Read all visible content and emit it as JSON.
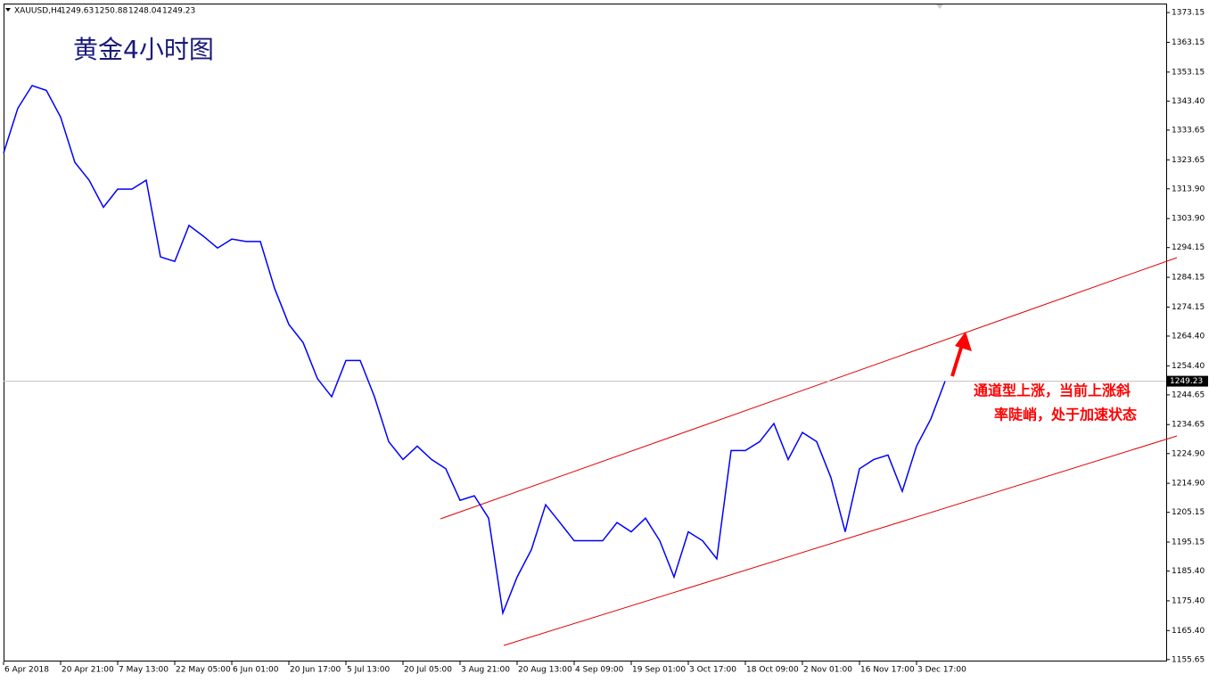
{
  "chart_data": {
    "type": "line",
    "symbol": "XAUUSD,H4",
    "ohlc": [
      1249.63,
      1250.88,
      1248.04,
      1249.23
    ],
    "title": "黄金4小时图",
    "annotation": [
      "通道型上涨，当前上涨斜",
      "率陡峭，处于加速状态"
    ],
    "current_price": 1249.23,
    "categories": [
      "6 Apr 2018",
      null,
      null,
      null,
      "20 Apr 21:00",
      null,
      null,
      null,
      "7 May 13:00",
      null,
      null,
      null,
      "22 May 05:00",
      null,
      null,
      null,
      "6 Jun 01:00",
      null,
      null,
      null,
      "20 Jun 17:00",
      null,
      null,
      null,
      "5 Jul 13:00",
      null,
      null,
      null,
      "20 Jul 05:00",
      null,
      null,
      null,
      "3 Aug 21:00",
      null,
      null,
      null,
      "20 Aug 13:00",
      null,
      null,
      null,
      "4 Sep 09:00",
      null,
      null,
      null,
      "19 Sep 01:00",
      null,
      null,
      null,
      "3 Oct 17:00",
      null,
      null,
      null,
      "18 Oct 09:00",
      null,
      null,
      null,
      "2 Nov 01:00",
      null,
      null,
      null,
      "16 Nov 17:00",
      null,
      null,
      null,
      "3 Dec 17:00",
      null,
      null,
      null,
      null,
      null,
      null,
      null,
      null,
      null,
      null,
      null,
      null,
      null,
      null,
      null,
      null,
      null
    ],
    "series": [
      {
        "name": "XAUUSD,H4",
        "color": "#0000ff",
        "values": [
          1325.9,
          1341,
          1348.6,
          1347,
          1338,
          1322.8,
          1316.8,
          1307.7,
          1313.8,
          1313.8,
          1316.8,
          1291,
          1289.5,
          1301.6,
          1298,
          1294,
          1297,
          1296.2,
          1296.2,
          1280.4,
          1268.3,
          1262.2,
          1250.1,
          1244,
          1256.2,
          1256.2,
          1244,
          1228.9,
          1222.9,
          1227.4,
          1222.9,
          1219.8,
          1209.2,
          1210.7,
          1203.2,
          1171.3,
          1183.4,
          1192.6,
          1207.7,
          1201.7,
          1195.6,
          1195.6,
          1195.6,
          1201.7,
          1198.6,
          1203.2,
          1195.6,
          1183.4,
          1198.6,
          1195.6,
          1189.5,
          1225.9,
          1225.9,
          1228.9,
          1235,
          1222.9,
          1232,
          1228.9,
          1216.8,
          1198.6,
          1219.8,
          1222.9,
          1224.4,
          1212.2,
          1227.4,
          1236.5,
          1249.23,
          null,
          null,
          null,
          null,
          null,
          null,
          null,
          null,
          null,
          null,
          null,
          null,
          null,
          null,
          null
        ]
      }
    ],
    "ylim": [
      1155.0,
      1375.88
    ],
    "yticks": [
      {
        "value": 1373.15,
        "label": "1373.15"
      },
      {
        "value": 1363.15,
        "label": "1363.15"
      },
      {
        "value": 1353.15,
        "label": "1353.15"
      },
      {
        "value": 1343.4,
        "label": "1343.40"
      },
      {
        "value": 1333.65,
        "label": "1333.65"
      },
      {
        "value": 1323.65,
        "label": "1323.65"
      },
      {
        "value": 1313.9,
        "label": "1313.90"
      },
      {
        "value": 1303.9,
        "label": "1303.90"
      },
      {
        "value": 1294.15,
        "label": "1294.15"
      },
      {
        "value": 1284.15,
        "label": "1284.15"
      },
      {
        "value": 1274.15,
        "label": "1274.15"
      },
      {
        "value": 1264.4,
        "label": "1264.40"
      },
      {
        "value": 1254.4,
        "label": "1254.40"
      },
      {
        "value": 1244.65,
        "label": "1244.65"
      },
      {
        "value": 1234.65,
        "label": "1234.65"
      },
      {
        "value": 1224.9,
        "label": "1224.90"
      },
      {
        "value": 1214.9,
        "label": "1214.90"
      },
      {
        "value": 1205.15,
        "label": "1205.15"
      },
      {
        "value": 1195.15,
        "label": "1195.15"
      },
      {
        "value": 1185.4,
        "label": "1185.40"
      },
      {
        "value": 1175.4,
        "label": "1175.40"
      },
      {
        "value": 1165.4,
        "label": "1165.40"
      },
      {
        "value": 1155.65,
        "label": "1155.65"
      }
    ]
  }
}
